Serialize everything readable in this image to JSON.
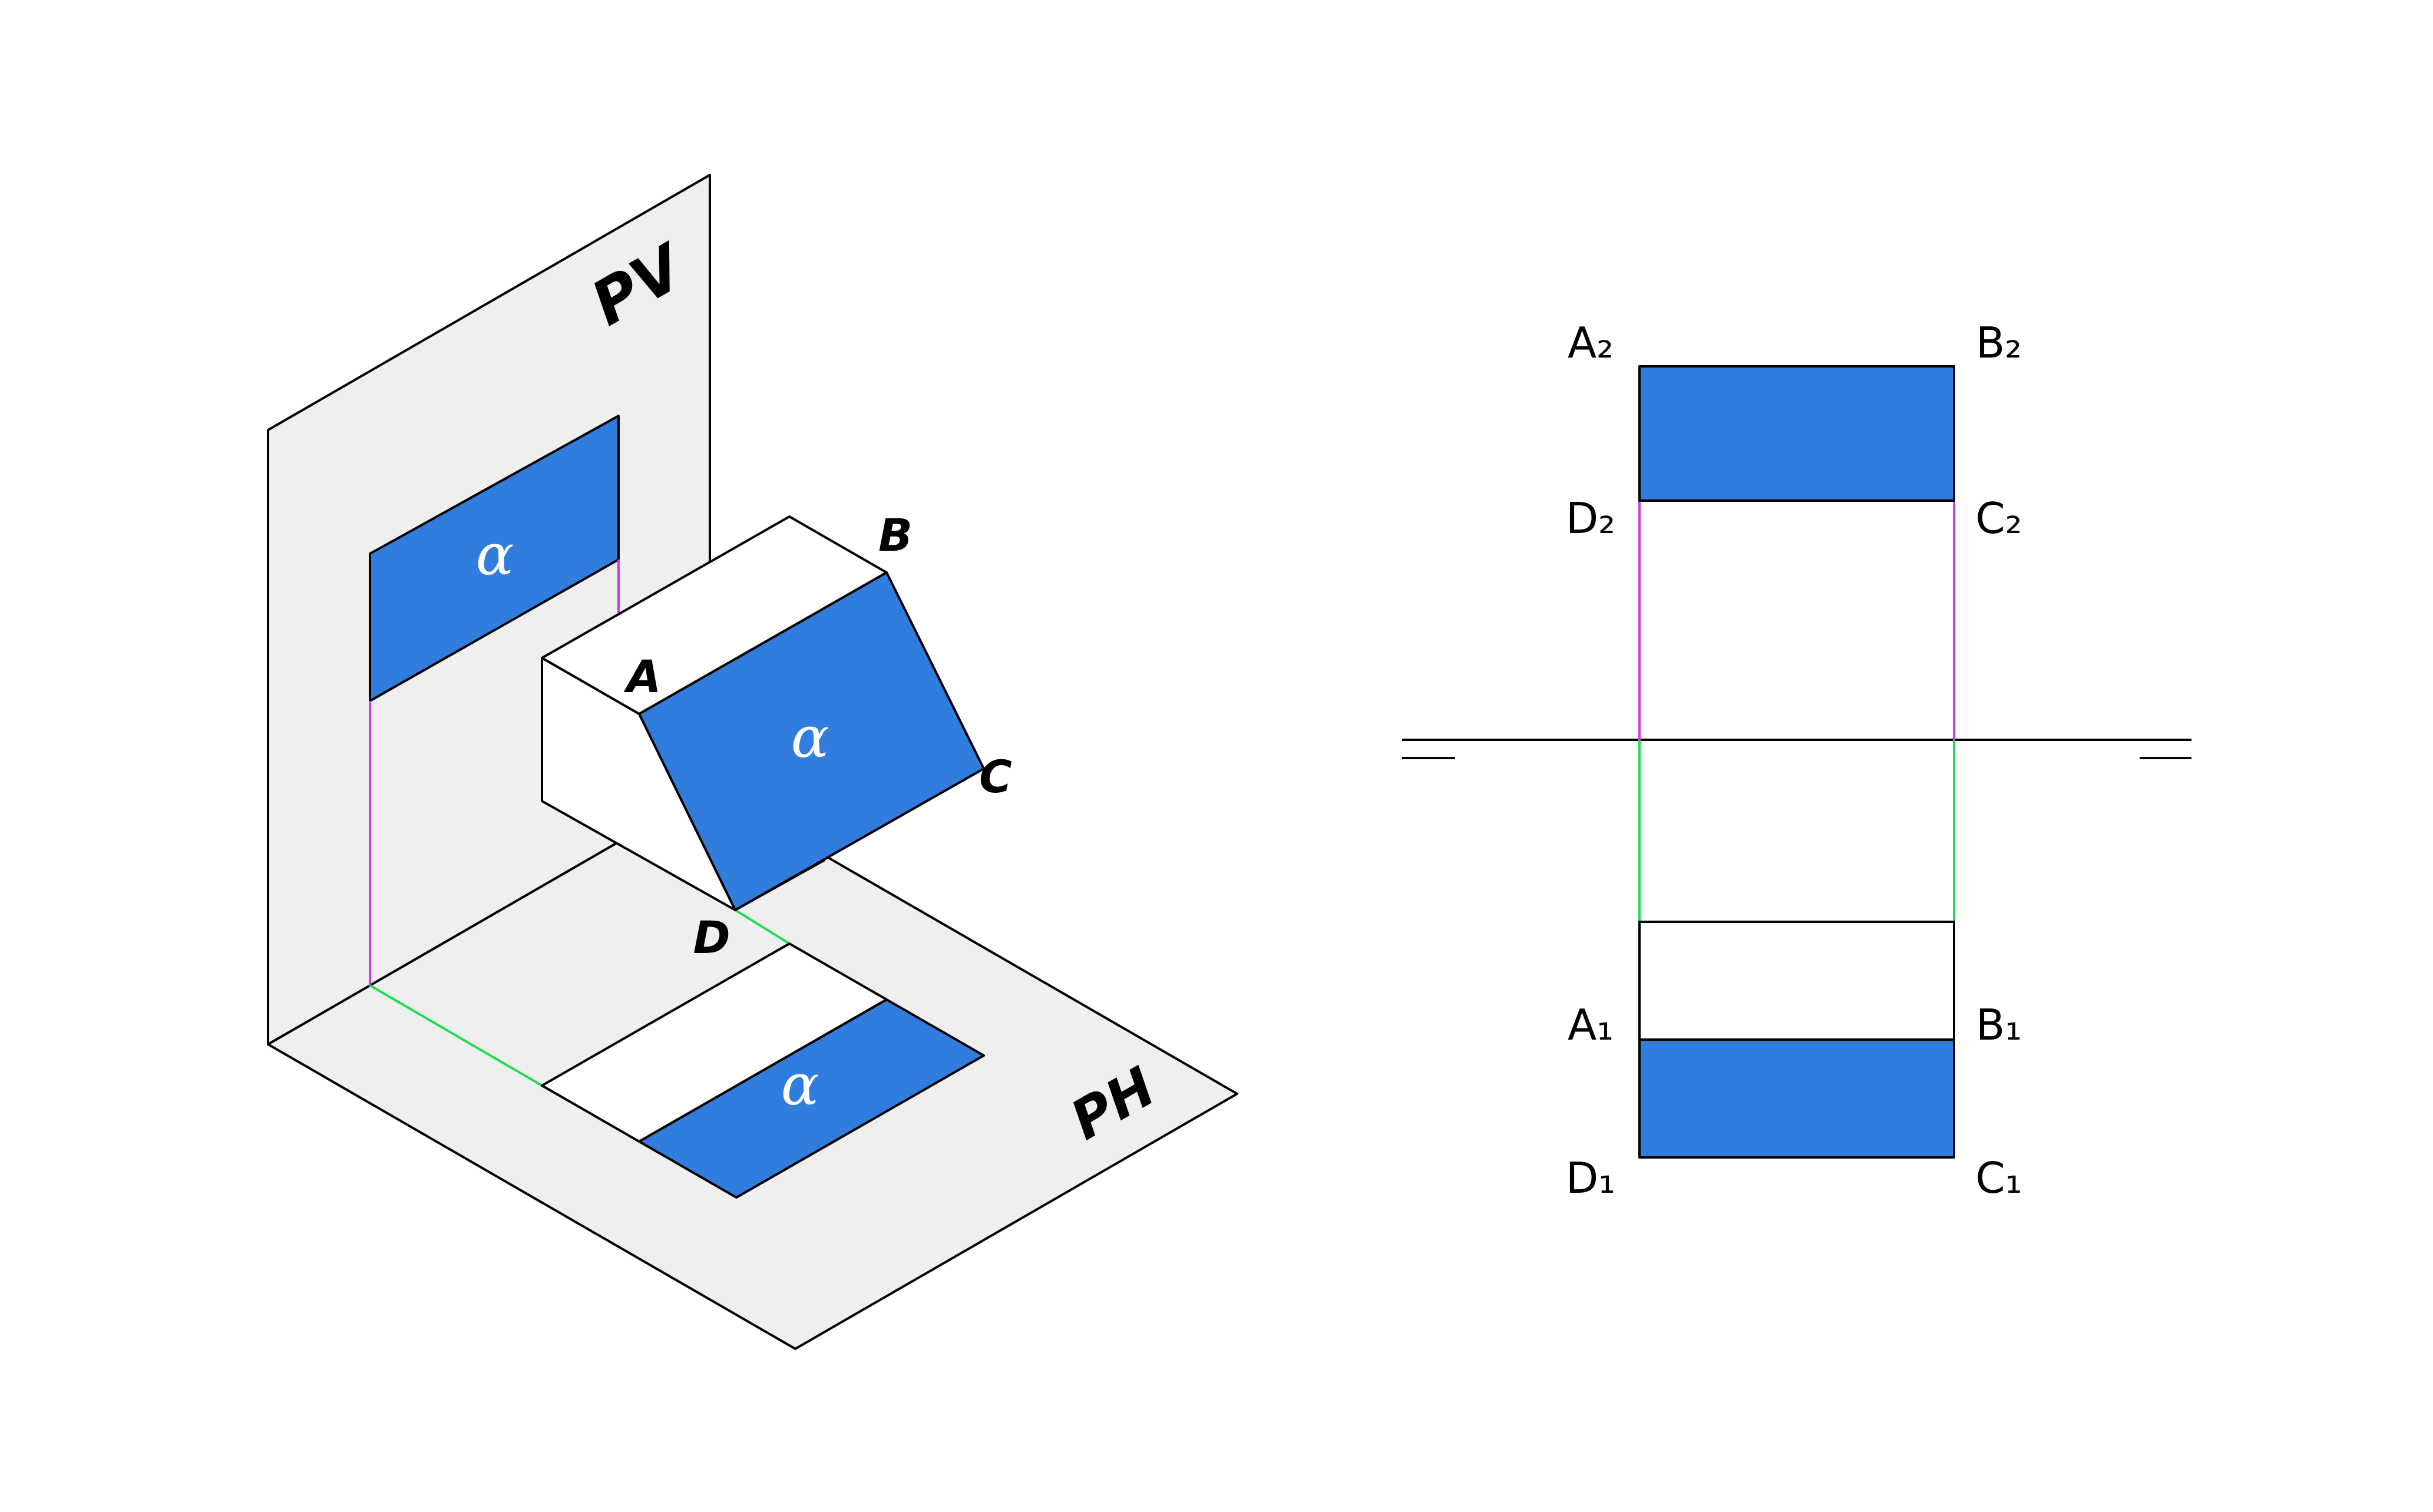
{
  "colors": {
    "face": "#307ddd",
    "plane": "#efefef",
    "vertical_projector": "#c63fe0",
    "horizontal_projector": "#20dc50"
  },
  "isometric": {
    "plane_vertical_label": "PV",
    "plane_horizontal_label": "PH",
    "alpha_on_pv": "α",
    "alpha_on_solid": "α",
    "alpha_on_ph": "α",
    "point_a": "A",
    "point_b": "B",
    "point_c": "C",
    "point_d": "D"
  },
  "orthographic": {
    "a2": "A₂",
    "b2": "B₂",
    "c2": "C₂",
    "d2": "D₂",
    "a1": "A₁",
    "b1": "B₁",
    "c1": "C₁",
    "d1": "D₁"
  }
}
